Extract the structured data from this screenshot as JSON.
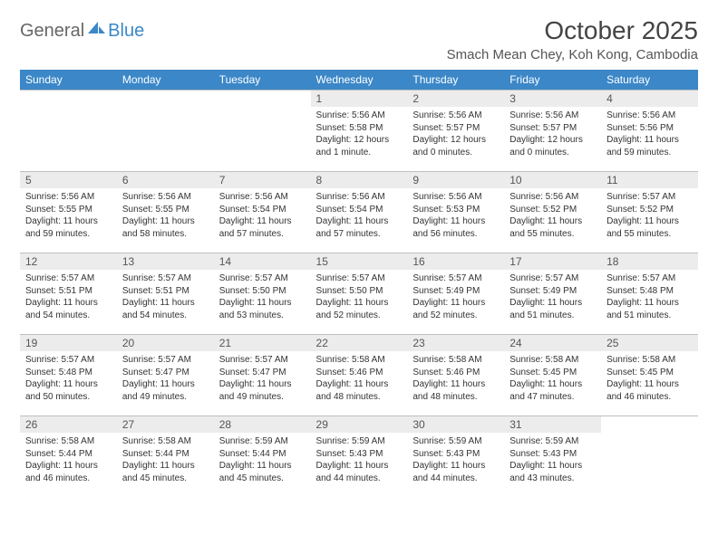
{
  "brand": {
    "part1": "General",
    "part2": "Blue"
  },
  "title": "October 2025",
  "location": "Smach Mean Chey, Koh Kong, Cambodia",
  "colors": {
    "header_bg": "#3b87c8",
    "header_text": "#ffffff",
    "daynum_bg": "#ececec",
    "border": "#bfbfbf",
    "text": "#333333",
    "background": "#ffffff"
  },
  "typography": {
    "month_title_fontsize": 28,
    "location_fontsize": 15,
    "weekday_fontsize": 12,
    "daynum_fontsize": 12,
    "body_fontsize": 10
  },
  "weekdays": [
    "Sunday",
    "Monday",
    "Tuesday",
    "Wednesday",
    "Thursday",
    "Friday",
    "Saturday"
  ],
  "first_weekday_index": 3,
  "days": [
    {
      "n": 1,
      "sunrise": "5:56 AM",
      "sunset": "5:58 PM",
      "daylight": "12 hours and 1 minute."
    },
    {
      "n": 2,
      "sunrise": "5:56 AM",
      "sunset": "5:57 PM",
      "daylight": "12 hours and 0 minutes."
    },
    {
      "n": 3,
      "sunrise": "5:56 AM",
      "sunset": "5:57 PM",
      "daylight": "12 hours and 0 minutes."
    },
    {
      "n": 4,
      "sunrise": "5:56 AM",
      "sunset": "5:56 PM",
      "daylight": "11 hours and 59 minutes."
    },
    {
      "n": 5,
      "sunrise": "5:56 AM",
      "sunset": "5:55 PM",
      "daylight": "11 hours and 59 minutes."
    },
    {
      "n": 6,
      "sunrise": "5:56 AM",
      "sunset": "5:55 PM",
      "daylight": "11 hours and 58 minutes."
    },
    {
      "n": 7,
      "sunrise": "5:56 AM",
      "sunset": "5:54 PM",
      "daylight": "11 hours and 57 minutes."
    },
    {
      "n": 8,
      "sunrise": "5:56 AM",
      "sunset": "5:54 PM",
      "daylight": "11 hours and 57 minutes."
    },
    {
      "n": 9,
      "sunrise": "5:56 AM",
      "sunset": "5:53 PM",
      "daylight": "11 hours and 56 minutes."
    },
    {
      "n": 10,
      "sunrise": "5:56 AM",
      "sunset": "5:52 PM",
      "daylight": "11 hours and 55 minutes."
    },
    {
      "n": 11,
      "sunrise": "5:57 AM",
      "sunset": "5:52 PM",
      "daylight": "11 hours and 55 minutes."
    },
    {
      "n": 12,
      "sunrise": "5:57 AM",
      "sunset": "5:51 PM",
      "daylight": "11 hours and 54 minutes."
    },
    {
      "n": 13,
      "sunrise": "5:57 AM",
      "sunset": "5:51 PM",
      "daylight": "11 hours and 54 minutes."
    },
    {
      "n": 14,
      "sunrise": "5:57 AM",
      "sunset": "5:50 PM",
      "daylight": "11 hours and 53 minutes."
    },
    {
      "n": 15,
      "sunrise": "5:57 AM",
      "sunset": "5:50 PM",
      "daylight": "11 hours and 52 minutes."
    },
    {
      "n": 16,
      "sunrise": "5:57 AM",
      "sunset": "5:49 PM",
      "daylight": "11 hours and 52 minutes."
    },
    {
      "n": 17,
      "sunrise": "5:57 AM",
      "sunset": "5:49 PM",
      "daylight": "11 hours and 51 minutes."
    },
    {
      "n": 18,
      "sunrise": "5:57 AM",
      "sunset": "5:48 PM",
      "daylight": "11 hours and 51 minutes."
    },
    {
      "n": 19,
      "sunrise": "5:57 AM",
      "sunset": "5:48 PM",
      "daylight": "11 hours and 50 minutes."
    },
    {
      "n": 20,
      "sunrise": "5:57 AM",
      "sunset": "5:47 PM",
      "daylight": "11 hours and 49 minutes."
    },
    {
      "n": 21,
      "sunrise": "5:57 AM",
      "sunset": "5:47 PM",
      "daylight": "11 hours and 49 minutes."
    },
    {
      "n": 22,
      "sunrise": "5:58 AM",
      "sunset": "5:46 PM",
      "daylight": "11 hours and 48 minutes."
    },
    {
      "n": 23,
      "sunrise": "5:58 AM",
      "sunset": "5:46 PM",
      "daylight": "11 hours and 48 minutes."
    },
    {
      "n": 24,
      "sunrise": "5:58 AM",
      "sunset": "5:45 PM",
      "daylight": "11 hours and 47 minutes."
    },
    {
      "n": 25,
      "sunrise": "5:58 AM",
      "sunset": "5:45 PM",
      "daylight": "11 hours and 46 minutes."
    },
    {
      "n": 26,
      "sunrise": "5:58 AM",
      "sunset": "5:44 PM",
      "daylight": "11 hours and 46 minutes."
    },
    {
      "n": 27,
      "sunrise": "5:58 AM",
      "sunset": "5:44 PM",
      "daylight": "11 hours and 45 minutes."
    },
    {
      "n": 28,
      "sunrise": "5:59 AM",
      "sunset": "5:44 PM",
      "daylight": "11 hours and 45 minutes."
    },
    {
      "n": 29,
      "sunrise": "5:59 AM",
      "sunset": "5:43 PM",
      "daylight": "11 hours and 44 minutes."
    },
    {
      "n": 30,
      "sunrise": "5:59 AM",
      "sunset": "5:43 PM",
      "daylight": "11 hours and 44 minutes."
    },
    {
      "n": 31,
      "sunrise": "5:59 AM",
      "sunset": "5:43 PM",
      "daylight": "11 hours and 43 minutes."
    }
  ],
  "labels": {
    "sunrise": "Sunrise:",
    "sunset": "Sunset:",
    "daylight": "Daylight:"
  }
}
